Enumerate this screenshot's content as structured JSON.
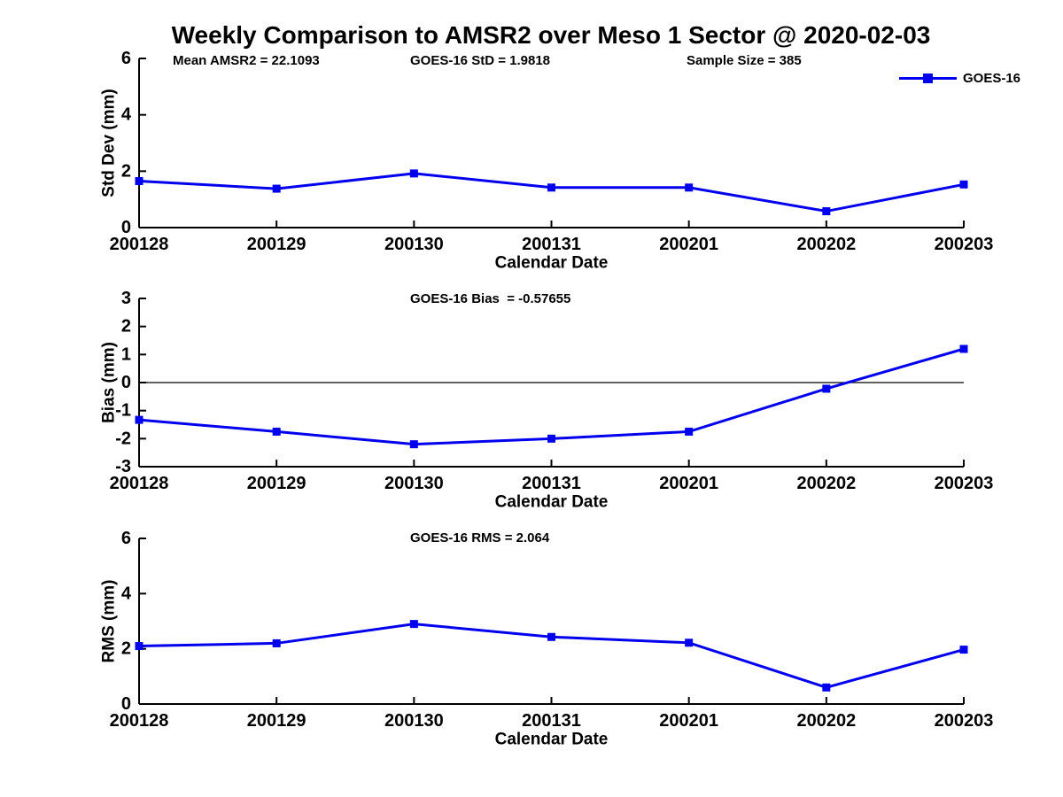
{
  "title": "Weekly Comparison to AMSR2 over Meso 1 Sector @ 2020-02-03",
  "colors": {
    "series_line": "#0000EE",
    "axis": "#000000",
    "text": "#000000",
    "background": "#ffffff"
  },
  "legend": {
    "label": "GOES-16",
    "position": "top-right"
  },
  "chart_data": [
    {
      "type": "line",
      "categories": [
        "200128",
        "200129",
        "200130",
        "200131",
        "200201",
        "200202",
        "200203"
      ],
      "series": [
        {
          "name": "GOES-16",
          "values": [
            1.65,
            1.38,
            1.92,
            1.42,
            1.42,
            0.58,
            1.53
          ]
        }
      ],
      "ylabel": "Std Dev (mm)",
      "xlabel": "Calendar Date",
      "ylim": [
        0,
        6
      ],
      "yticks": [
        0,
        2,
        4,
        6
      ],
      "ytick_labels": [
        "0",
        "2",
        "4",
        "6"
      ],
      "annotations": [
        "Mean AMSR2 = 22.1093",
        "GOES-16 StD = 1.9818",
        "Sample Size = 385"
      ],
      "grid": false,
      "zero_line": false,
      "legend": [
        "GOES-16"
      ],
      "legend_position": "top-right"
    },
    {
      "type": "line",
      "categories": [
        "200128",
        "200129",
        "200130",
        "200131",
        "200201",
        "200202",
        "200203"
      ],
      "series": [
        {
          "name": "GOES-16",
          "values": [
            -1.33,
            -1.75,
            -2.2,
            -2.0,
            -1.75,
            -0.22,
            1.2
          ]
        }
      ],
      "ylabel": "Bias (mm)",
      "xlabel": "Calendar Date",
      "ylim": [
        -3,
        3
      ],
      "yticks": [
        -3,
        -2,
        -1,
        0,
        1,
        2,
        3
      ],
      "ytick_labels": [
        "-3",
        "-2",
        "-1",
        "0",
        "1",
        "2",
        "3"
      ],
      "annotations": [
        "GOES-16 Bias  = -0.57655"
      ],
      "grid": false,
      "zero_line": true,
      "legend": [],
      "legend_position": "none"
    },
    {
      "type": "line",
      "categories": [
        "200128",
        "200129",
        "200130",
        "200131",
        "200201",
        "200202",
        "200203"
      ],
      "series": [
        {
          "name": "GOES-16",
          "values": [
            2.1,
            2.2,
            2.9,
            2.43,
            2.22,
            0.6,
            1.97
          ]
        }
      ],
      "ylabel": "RMS (mm)",
      "xlabel": "Calendar Date",
      "ylim": [
        0,
        6
      ],
      "yticks": [
        0,
        2,
        4,
        6
      ],
      "ytick_labels": [
        "0",
        "2",
        "4",
        "6"
      ],
      "annotations": [
        "GOES-16 RMS = 2.064"
      ],
      "grid": false,
      "zero_line": false,
      "legend": [],
      "legend_position": "none"
    }
  ]
}
